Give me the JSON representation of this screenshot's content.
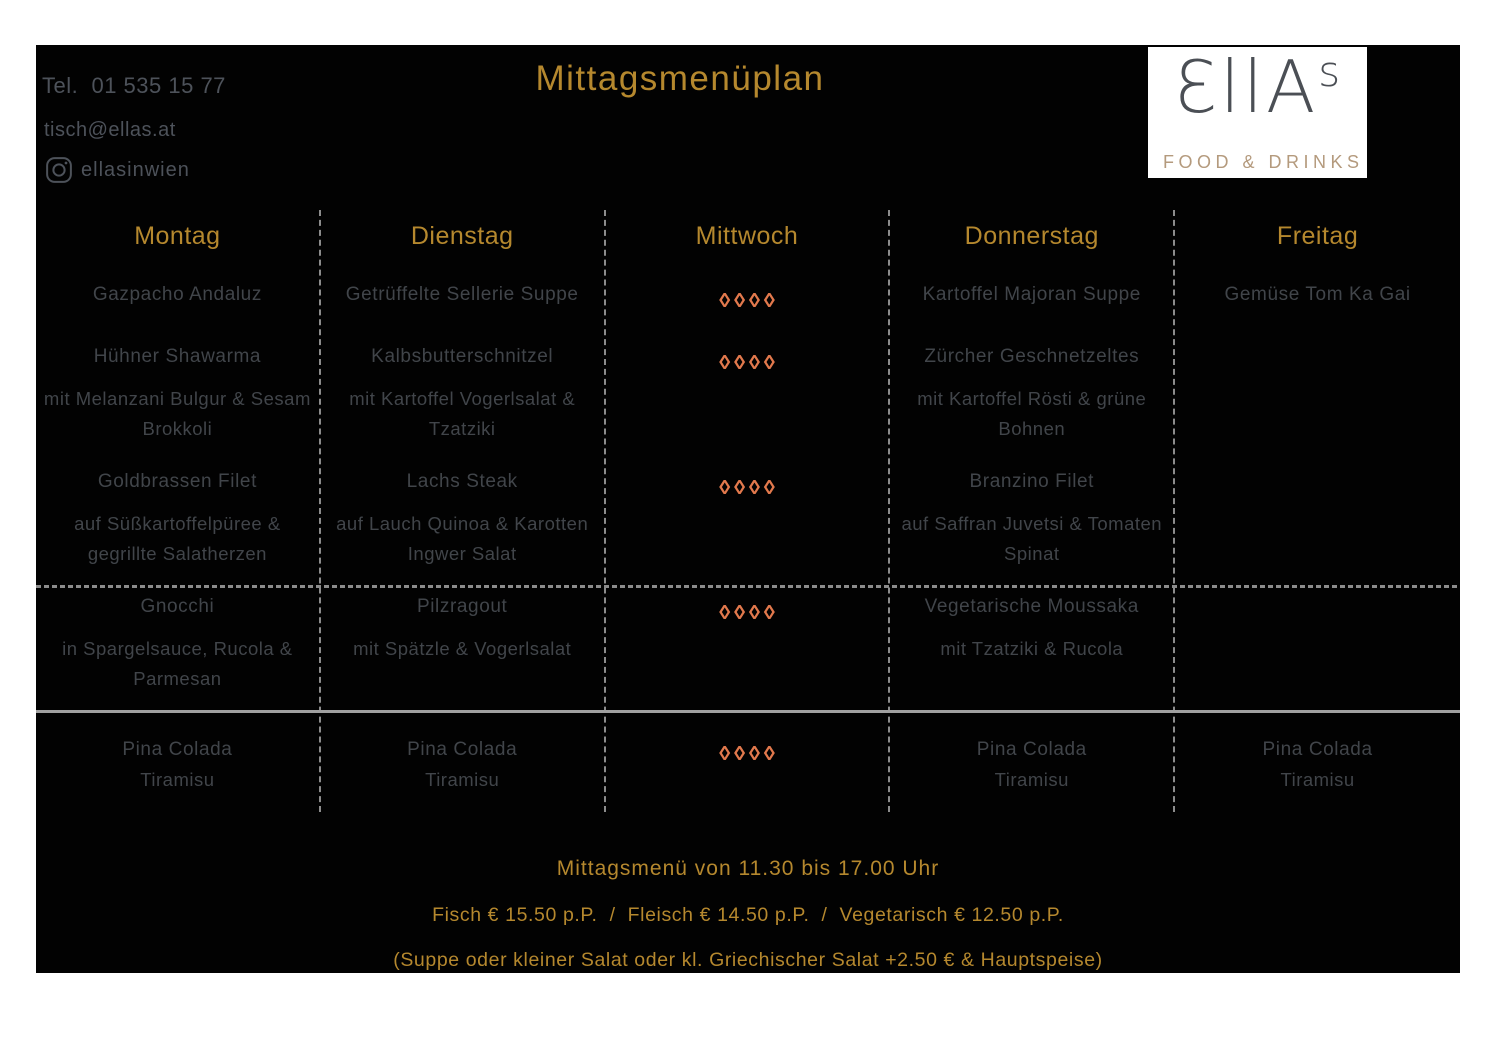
{
  "colors": {
    "background": "#020202",
    "page_bg": "#ffffff",
    "gold": "#b5882e",
    "dish": "#41454a",
    "contact": "#4d525a",
    "diamond": "#e2794d",
    "line": "#8c8c8c",
    "logo_text": "#4b4f55",
    "logo_tagline": "#b49a7d"
  },
  "header": {
    "phone": "Tel.  01 535 15 77",
    "email": "tisch@ellas.at",
    "instagram_icon": "instagram-icon",
    "instagram_handle": "ellasinwien",
    "title": "Mittagsmenüplan",
    "logo": {
      "wordmark": "ƐllA",
      "wordmark_sup": "s",
      "tagline": "FOOD & DRINKS"
    }
  },
  "menu": {
    "days": [
      "Montag",
      "Dienstag",
      "Mittwoch",
      "Donnerstag",
      "Freitag"
    ],
    "diamond_glyphs": "◊◊◊◊",
    "rows": [
      {
        "id": "soup",
        "cells": [
          {
            "type": "dish",
            "title": "Gazpacho Andaluz",
            "desc": []
          },
          {
            "type": "dish",
            "title": "Getrüffelte Sellerie Suppe",
            "desc": []
          },
          {
            "type": "diamonds"
          },
          {
            "type": "dish",
            "title": "Kartoffel Majoran Suppe",
            "desc": []
          },
          {
            "type": "dish",
            "title": "Gemüse Tom Ka Gai",
            "desc": []
          }
        ]
      },
      {
        "id": "main-meat",
        "cells": [
          {
            "type": "dish",
            "title": "Hühner Shawarma",
            "desc": [
              "mit Melanzani Bulgur & Sesam",
              "Brokkoli"
            ]
          },
          {
            "type": "dish",
            "title": "Kalbsbutterschnitzel",
            "desc": [
              "mit Kartoffel Vogerlsalat &",
              "Tzatziki"
            ]
          },
          {
            "type": "diamonds"
          },
          {
            "type": "dish",
            "title": "Zürcher Geschnetzeltes",
            "desc": [
              "mit Kartoffel Rösti & grüne",
              "Bohnen"
            ]
          },
          {
            "type": "empty"
          }
        ]
      },
      {
        "id": "fish",
        "cells": [
          {
            "type": "dish",
            "title": "Goldbrassen Filet",
            "desc": [
              "auf Süßkartoffelpüree &",
              "gegrillte Salatherzen"
            ]
          },
          {
            "type": "dish",
            "title": "Lachs Steak",
            "desc": [
              "auf Lauch Quinoa & Karotten",
              "Ingwer Salat"
            ]
          },
          {
            "type": "diamonds"
          },
          {
            "type": "dish",
            "title": "Branzino Filet",
            "desc": [
              "auf Saffran Juvetsi & Tomaten",
              "Spinat"
            ]
          },
          {
            "type": "empty"
          }
        ]
      },
      {
        "id": "vegetarian",
        "cells": [
          {
            "type": "dish",
            "title": "Gnocchi",
            "desc": [
              "in Spargelsauce, Rucola &",
              "Parmesan"
            ]
          },
          {
            "type": "dish",
            "title": "Pilzragout",
            "desc": [
              "mit Spätzle & Vogerlsalat"
            ]
          },
          {
            "type": "diamonds"
          },
          {
            "type": "dish",
            "title": "Vegetarische Moussaka",
            "desc": [
              "mit Tzatziki & Rucola"
            ]
          },
          {
            "type": "empty"
          }
        ]
      },
      {
        "id": "dessert",
        "cells": [
          {
            "type": "dish",
            "title": "Pina Colada",
            "desc": [
              "Tiramisu"
            ]
          },
          {
            "type": "dish",
            "title": "Pina Colada",
            "desc": [
              "Tiramisu"
            ]
          },
          {
            "type": "diamonds"
          },
          {
            "type": "dish",
            "title": "Pina Colada",
            "desc": [
              "Tiramisu"
            ]
          },
          {
            "type": "dish",
            "title": "Pina Colada",
            "desc": [
              "Tiramisu"
            ]
          }
        ]
      }
    ]
  },
  "footer": {
    "hours": "Mittagsmenü von 11.30 bis 17.00 Uhr",
    "prices": "Fisch € 15.50 p.P.  /  Fleisch € 14.50 p.P.  /  Vegetarisch € 12.50 p.P.",
    "note": "(Suppe oder kleiner Salat oder kl. Griechischer Salat +2.50 € & Hauptspeise)"
  }
}
